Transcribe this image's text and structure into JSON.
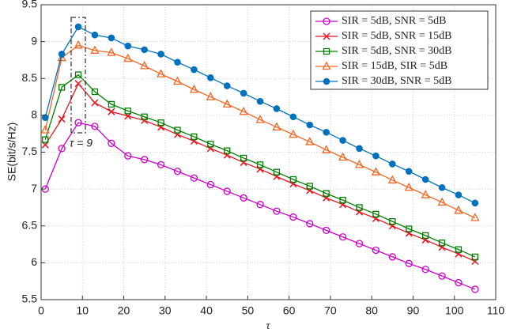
{
  "chart_data": {
    "type": "line",
    "xlabel": "τ",
    "ylabel": "SE(bit/s/Hz)",
    "annotation": "τ = 9",
    "x": [
      1,
      5,
      9,
      13,
      17,
      21,
      25,
      29,
      33,
      37,
      41,
      45,
      49,
      53,
      57,
      61,
      65,
      69,
      73,
      77,
      81,
      85,
      89,
      93,
      97,
      101,
      105
    ],
    "series": [
      {
        "name": "SIR = 5dB, SNR = 5dB",
        "color": "#cc00cc",
        "marker": "circle",
        "values": [
          7.0,
          7.55,
          7.9,
          7.85,
          7.62,
          7.45,
          7.4,
          7.33,
          7.24,
          7.15,
          7.06,
          6.97,
          6.88,
          6.79,
          6.7,
          6.62,
          6.53,
          6.44,
          6.35,
          6.26,
          6.17,
          6.08,
          5.99,
          5.91,
          5.82,
          5.73,
          5.64
        ]
      },
      {
        "name": "SIR = 5dB, SNR = 15dB",
        "color": "#e8141e",
        "marker": "x",
        "values": [
          7.6,
          7.95,
          8.43,
          8.17,
          8.05,
          7.99,
          7.93,
          7.84,
          7.74,
          7.65,
          7.55,
          7.46,
          7.36,
          7.27,
          7.17,
          7.07,
          6.98,
          6.88,
          6.79,
          6.69,
          6.6,
          6.5,
          6.4,
          6.31,
          6.21,
          6.12,
          6.02
        ]
      },
      {
        "name": "SIR = 5dB, SNR = 30dB",
        "color": "#008000",
        "marker": "square",
        "values": [
          7.67,
          8.38,
          8.55,
          8.32,
          8.15,
          8.06,
          7.98,
          7.9,
          7.8,
          7.71,
          7.61,
          7.52,
          7.42,
          7.33,
          7.23,
          7.13,
          7.04,
          6.94,
          6.85,
          6.75,
          6.66,
          6.56,
          6.46,
          6.37,
          6.27,
          6.18,
          6.08
        ]
      },
      {
        "name": "SIR = 15dB, SIR = 5dB",
        "color": "#f26522",
        "marker": "triangle",
        "values": [
          7.8,
          8.78,
          8.95,
          8.88,
          8.85,
          8.77,
          8.67,
          8.56,
          8.46,
          8.35,
          8.25,
          8.15,
          8.05,
          7.94,
          7.84,
          7.74,
          7.64,
          7.53,
          7.43,
          7.33,
          7.23,
          7.12,
          7.02,
          6.92,
          6.82,
          6.71,
          6.61
        ]
      },
      {
        "name": "SIR = 30dB, SNR = 5dB",
        "color": "#0072bd",
        "marker": "dot",
        "values": [
          7.97,
          8.83,
          9.2,
          9.09,
          9.05,
          8.94,
          8.89,
          8.83,
          8.72,
          8.62,
          8.51,
          8.4,
          8.3,
          8.19,
          8.09,
          7.98,
          7.87,
          7.77,
          7.66,
          7.55,
          7.45,
          7.34,
          7.24,
          7.13,
          7.02,
          6.92,
          6.81
        ]
      }
    ],
    "xlim": [
      0,
      110
    ],
    "xticks": [
      0,
      10,
      20,
      30,
      40,
      50,
      60,
      70,
      80,
      90,
      100,
      110
    ],
    "ylim": [
      5.5,
      9.5
    ],
    "yticks": [
      5.5,
      6,
      6.5,
      7,
      7.5,
      8,
      8.5,
      9,
      9.5
    ],
    "grid": true,
    "legend": "upper right"
  }
}
